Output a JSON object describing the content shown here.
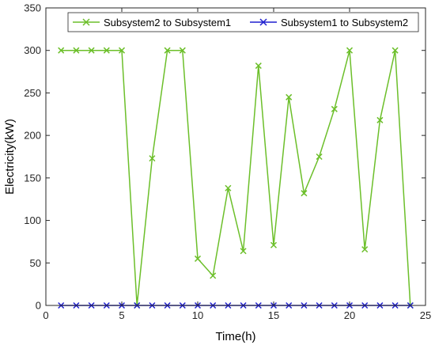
{
  "chart_data": {
    "type": "line",
    "xlabel": "Time(h)",
    "ylabel": "Electricity(kW)",
    "xlim": [
      0,
      25
    ],
    "ylim": [
      0,
      350
    ],
    "x_ticks": [
      0,
      5,
      10,
      15,
      20,
      25
    ],
    "y_ticks": [
      0,
      50,
      100,
      150,
      200,
      250,
      300,
      350
    ],
    "grid": false,
    "legend_position": "top",
    "x": [
      1,
      2,
      3,
      4,
      5,
      6,
      7,
      8,
      9,
      10,
      11,
      12,
      13,
      14,
      15,
      16,
      17,
      18,
      19,
      20,
      21,
      22,
      23,
      24
    ],
    "series": [
      {
        "name": "Subsystem2 to Subsystem1",
        "color": "#6cbf2a",
        "marker": "x",
        "values": [
          300,
          300,
          300,
          300,
          300,
          0,
          173,
          300,
          300,
          55,
          35,
          138,
          64,
          282,
          71,
          245,
          132,
          175,
          231,
          300,
          66,
          218,
          300,
          0
        ]
      },
      {
        "name": "Subsystem1 to Subsystem2",
        "color": "#1f1fcf",
        "marker": "x",
        "values": [
          0,
          0,
          0,
          0,
          0,
          0,
          0,
          0,
          0,
          0,
          0,
          0,
          0,
          0,
          0,
          0,
          0,
          0,
          0,
          0,
          0,
          0,
          0,
          0
        ]
      }
    ]
  }
}
